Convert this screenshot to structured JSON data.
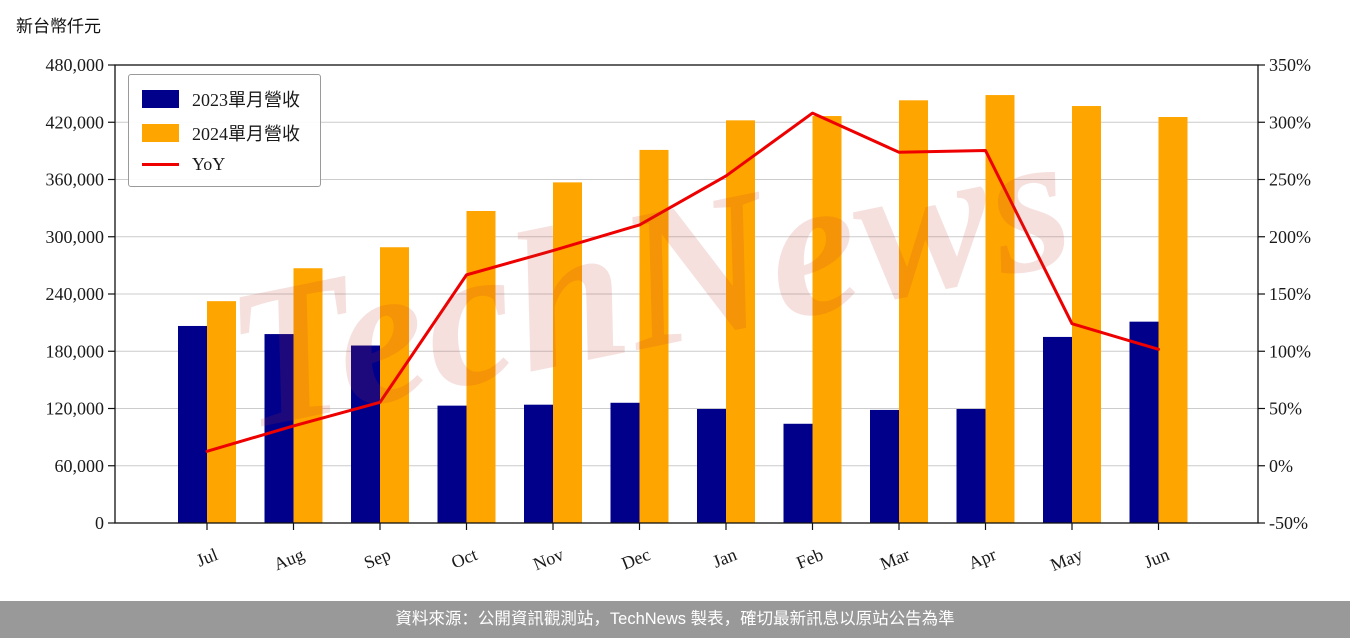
{
  "watermark": {
    "text": "TechNews",
    "color": "#c0392b"
  },
  "footer": {
    "text": "資料來源：公開資訊觀測站，TechNews 製表，確切最新訊息以原站公告為準",
    "bg": "#999999"
  },
  "chart_data": {
    "type": "bar",
    "subtype": "grouped-bars-with-line",
    "unit_label": "新台幣仟元",
    "categories": [
      "Jul",
      "Aug",
      "Sep",
      "Oct",
      "Nov",
      "Dec",
      "Jan",
      "Feb",
      "Mar",
      "Apr",
      "May",
      "Jun"
    ],
    "series": [
      {
        "name": "2023單月營收",
        "type": "bar",
        "axis": "left",
        "color": "#00008B",
        "values": [
          206500,
          198000,
          186000,
          123000,
          124000,
          126000,
          119500,
          104000,
          118500,
          119500,
          195000,
          211000
        ]
      },
      {
        "name": "2024單月營收",
        "type": "bar",
        "axis": "left",
        "color": "#FFA500",
        "values": [
          232500,
          267000,
          289000,
          327000,
          357000,
          391000,
          422000,
          426500,
          443000,
          448500,
          437000,
          425500
        ]
      },
      {
        "name": "YoY",
        "type": "line",
        "axis": "right",
        "color": "#EE0000",
        "values": [
          12.6,
          34.8,
          55.4,
          166.7,
          187.9,
          210.3,
          253.1,
          308.0,
          273.8,
          275.3,
          124.1,
          101.7
        ]
      }
    ],
    "left_axis": {
      "min": 0,
      "max": 480000,
      "tick_step": 60000,
      "tick_labels": [
        "0",
        "60,000",
        "120,000",
        "180,000",
        "240,000",
        "300,000",
        "360,000",
        "420,000",
        "480,000"
      ]
    },
    "right_axis": {
      "min": -50,
      "max": 350,
      "tick_step": 50,
      "tick_labels": [
        "-50%",
        "0%",
        "50%",
        "100%",
        "150%",
        "200%",
        "250%",
        "300%",
        "350%"
      ]
    },
    "grid": true,
    "grid_color": "#cccccc",
    "legend_position": "top-left"
  }
}
